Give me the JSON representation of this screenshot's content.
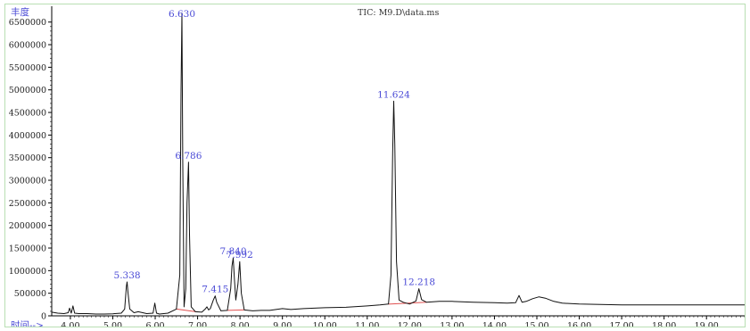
{
  "chart_data": {
    "type": "line",
    "title": "TIC: M9.D\\data.ms",
    "ylabel": "丰度",
    "xlabel": "时间-->",
    "xlim": [
      3.56,
      19.9
    ],
    "ylim": [
      0,
      6850000
    ],
    "xticks": [
      4.0,
      5.0,
      6.0,
      7.0,
      8.0,
      9.0,
      10.0,
      11.0,
      12.0,
      13.0,
      14.0,
      15.0,
      16.0,
      17.0,
      18.0,
      19.0
    ],
    "xtick_labels": [
      "4.00",
      "5.00",
      "6.00",
      "7.00",
      "8.00",
      "9.00",
      "10.00",
      "11.00",
      "12.00",
      "13.00",
      "14.00",
      "15.00",
      "16.00",
      "17.00",
      "18.00",
      "19.00"
    ],
    "yticks": [
      0,
      500000,
      1000000,
      1500000,
      2000000,
      2500000,
      3000000,
      3500000,
      4000000,
      4500000,
      5000000,
      5500000,
      6000000,
      6500000
    ],
    "ytick_labels": [
      "0",
      "500000",
      "1000000",
      "1500000",
      "2000000",
      "2500000",
      "3000000",
      "3500000",
      "4000000",
      "4500000",
      "5000000",
      "5500000",
      "6000000",
      "6500000"
    ],
    "series": [
      {
        "x": [
          3.56,
          3.7,
          3.85,
          3.95,
          3.98,
          4.02,
          4.06,
          4.1,
          4.2,
          4.4,
          4.6,
          4.8,
          5.0,
          5.2,
          5.28,
          5.32,
          5.338,
          5.36,
          5.4,
          5.5,
          5.6,
          5.8,
          5.95,
          5.99,
          6.03,
          6.1,
          6.3,
          6.5,
          6.58,
          6.61,
          6.63,
          6.65,
          6.68,
          6.72,
          6.75,
          6.786,
          6.81,
          6.85,
          6.95,
          7.1,
          7.18,
          7.22,
          7.26,
          7.3,
          7.37,
          7.415,
          7.45,
          7.55,
          7.7,
          7.78,
          7.81,
          7.84,
          7.87,
          7.9,
          7.95,
          7.992,
          8.03,
          8.1,
          8.3,
          8.5,
          8.7,
          9.0,
          9.2,
          9.5,
          10.0,
          10.5,
          11.0,
          11.3,
          11.5,
          11.56,
          11.6,
          11.624,
          11.65,
          11.69,
          11.75,
          11.85,
          12.0,
          12.15,
          12.218,
          12.28,
          12.4,
          12.7,
          13.0,
          13.5,
          14.0,
          14.3,
          14.5,
          14.58,
          14.65,
          14.75,
          14.9,
          15.05,
          15.2,
          15.4,
          15.6,
          16.0,
          16.5,
          17.0,
          18.0,
          19.0,
          19.9
        ],
        "y": [
          80000,
          60000,
          50000,
          70000,
          170000,
          60000,
          220000,
          60000,
          50000,
          50000,
          40000,
          40000,
          45000,
          60000,
          150000,
          650000,
          750000,
          500000,
          150000,
          70000,
          90000,
          50000,
          60000,
          280000,
          60000,
          40000,
          60000,
          150000,
          900000,
          5000000,
          6700000,
          3500000,
          200000,
          600000,
          2500000,
          3400000,
          1800000,
          200000,
          90000,
          80000,
          150000,
          200000,
          130000,
          160000,
          350000,
          440000,
          300000,
          110000,
          120000,
          600000,
          1100000,
          1280000,
          800000,
          350000,
          700000,
          1200000,
          500000,
          130000,
          110000,
          120000,
          120000,
          160000,
          140000,
          160000,
          180000,
          190000,
          220000,
          240000,
          260000,
          900000,
          3600000,
          4750000,
          3800000,
          1200000,
          350000,
          300000,
          260000,
          330000,
          600000,
          360000,
          300000,
          320000,
          320000,
          300000,
          290000,
          280000,
          290000,
          450000,
          300000,
          320000,
          380000,
          420000,
          390000,
          320000,
          280000,
          260000,
          250000,
          240000,
          240000,
          240000,
          240000
        ]
      }
    ],
    "peak_labels": [
      {
        "x": 5.338,
        "label": "5.338"
      },
      {
        "x": 6.63,
        "label": "6.630"
      },
      {
        "x": 6.786,
        "label": "6.786"
      },
      {
        "x": 7.415,
        "label": "7.415"
      },
      {
        "x": 7.84,
        "label": "7.840"
      },
      {
        "x": 7.992,
        "label": "7.992"
      },
      {
        "x": 11.624,
        "label": "11.624"
      },
      {
        "x": 12.218,
        "label": "12.218"
      }
    ],
    "baselines": [
      [
        6.5,
        7.0
      ],
      [
        7.7,
        8.1
      ],
      [
        11.5,
        12.4
      ]
    ],
    "grid": false,
    "colors": {
      "trace": "#111111",
      "labels": "#4a4ad6",
      "baseline": "#e05050",
      "frame": "#b9dfb3"
    }
  }
}
